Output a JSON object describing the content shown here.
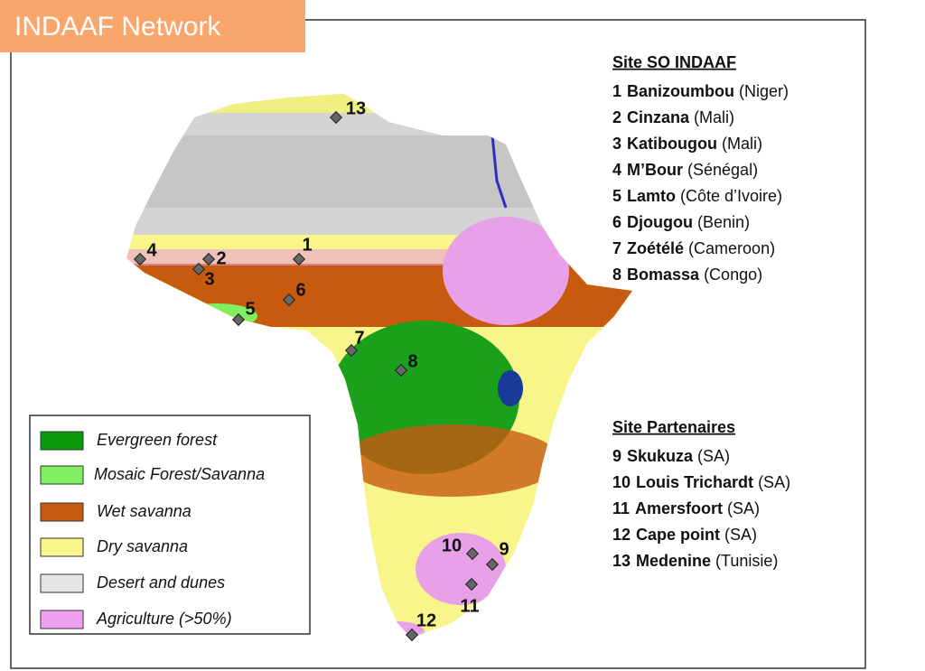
{
  "title": "INDAAF Network",
  "sections": [
    {
      "heading": "Site SO INDAAF",
      "sites": [
        {
          "number": "1",
          "name": "Banizoumbou",
          "country": "(Niger)"
        },
        {
          "number": "2",
          "name": "Cinzana",
          "country": "(Mali)"
        },
        {
          "number": "3",
          "name": "Katibougou",
          "country": "(Mali)"
        },
        {
          "number": "4",
          "name": "M’Bour",
          "country": "(Sénégal)"
        },
        {
          "number": "5",
          "name": "Lamto",
          "country": "(Côte d’Ivoire)"
        },
        {
          "number": "6",
          "name": "Djougou",
          "country": "(Benin)"
        },
        {
          "number": "7",
          "name": "Zoétélé",
          "country": "(Cameroon)"
        },
        {
          "number": "8",
          "name": "Bomassa",
          "country": "(Congo)"
        }
      ]
    },
    {
      "heading": "Site Partenaires",
      "sites": [
        {
          "number": "9",
          "name": "Skukuza",
          "country": "(SA)"
        },
        {
          "number": "10",
          "name": "Louis Trichardt",
          "country": "(SA)"
        },
        {
          "number": "11",
          "name": "Amersfoort",
          "country": "(SA)"
        },
        {
          "number": "12",
          "name": "Cape point",
          "country": "(SA)"
        },
        {
          "number": "13",
          "name": "Medenine",
          "country": "(Tunisie)"
        }
      ]
    }
  ],
  "legend": [
    {
      "label": "Evergreen forest",
      "color": "#0a9a0a"
    },
    {
      "label": "Mosaic Forest/Savanna",
      "color": "#80f060"
    },
    {
      "label": "Wet savanna",
      "color": "#c85a10"
    },
    {
      "label": "Dry savanna",
      "color": "#f8f58a"
    },
    {
      "label": "Desert and dunes",
      "color": "#e6e6e6"
    },
    {
      "label": "Agriculture (>50%)",
      "color": "#f0a0f0"
    }
  ]
}
